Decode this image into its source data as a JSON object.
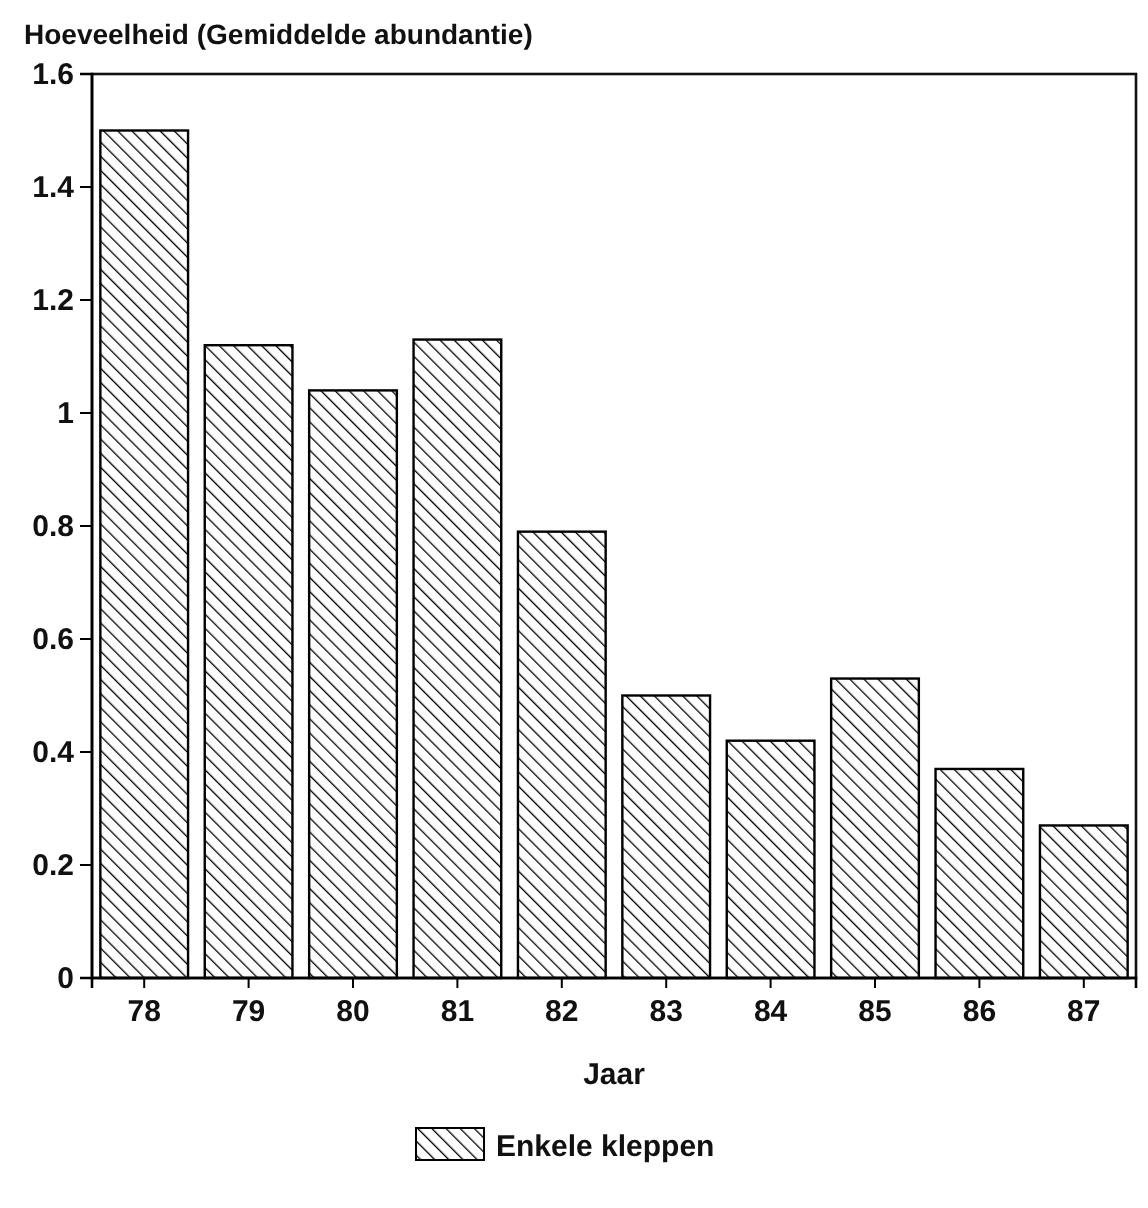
{
  "chart_data": {
    "type": "bar",
    "ylabel": "Hoeveelheid (Gemiddelde abundantie)",
    "xlabel": "Jaar",
    "categories": [
      "78",
      "79",
      "80",
      "81",
      "82",
      "83",
      "84",
      "85",
      "86",
      "87"
    ],
    "series": [
      {
        "name": "Enkele kleppen",
        "color": "#000000",
        "values": [
          1.5,
          1.12,
          1.04,
          1.13,
          0.79,
          0.5,
          0.42,
          0.53,
          0.37,
          0.27
        ]
      }
    ],
    "ylim": [
      0,
      1.6
    ],
    "yticks": [
      0,
      0.2,
      0.4,
      0.6,
      0.8,
      1,
      1.2,
      1.4,
      1.6
    ],
    "legend": "bottom"
  }
}
